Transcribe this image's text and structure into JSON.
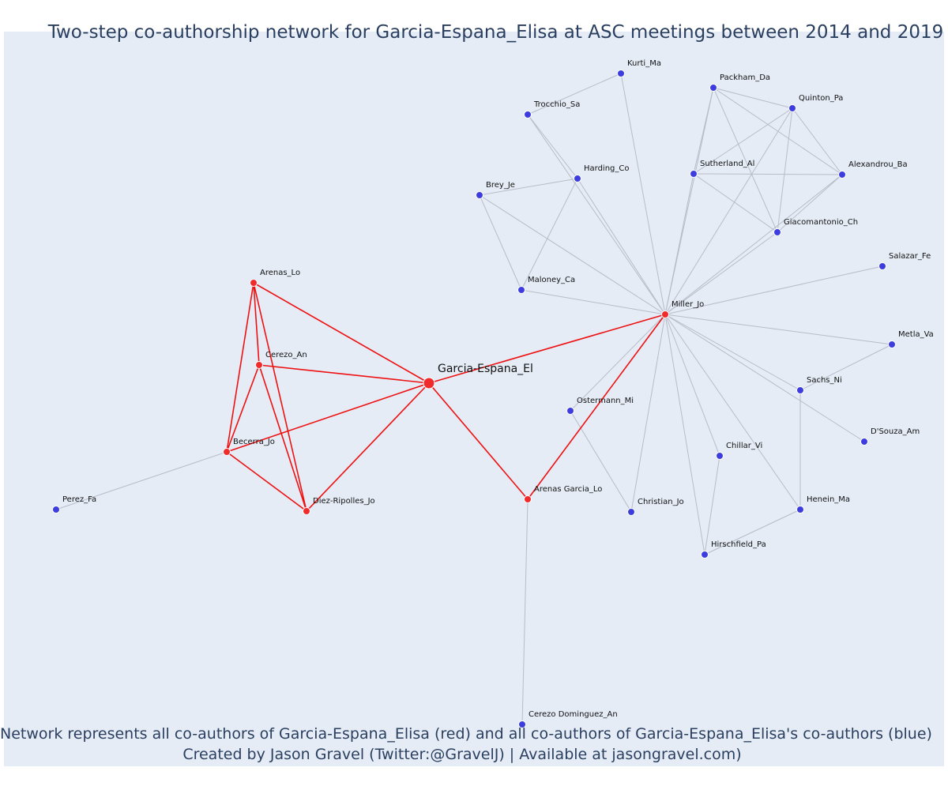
{
  "title": "Two-step co-authorship network for Garcia-Espana_Elisa at ASC meetings between 2014 and 2019",
  "caption_line1": "Network represents all co-authors of Garcia-Espana_Elisa (red) and all co-authors of Garcia-Espana_Elisa's co-authors (blue)",
  "caption_line2": "Created by Jason Gravel (Twitter:@GravelJ) | Available at jasongravel.com)",
  "colors": {
    "background": "#e5ecf6",
    "focal_node": "#ef2b2b",
    "coauthor_node": "#ef2b2b",
    "second_step_node": "#3d3ddf",
    "red_edge": "#ee1111",
    "grey_edge": "#b8bcc8",
    "text": "#2a3f5f"
  },
  "nodes": [
    {
      "id": "Garcia-Espana_El",
      "group": "focal"
    },
    {
      "id": "Arenas_Lo",
      "group": "coauthor"
    },
    {
      "id": "Cerezo_An",
      "group": "coauthor"
    },
    {
      "id": "Becerra_Jo",
      "group": "coauthor"
    },
    {
      "id": "Diez-Ripolles_Jo",
      "group": "coauthor"
    },
    {
      "id": "Arenas Garcia_Lo",
      "group": "coauthor"
    },
    {
      "id": "Miller_Jo",
      "group": "coauthor"
    },
    {
      "id": "Perez_Fa",
      "group": "second"
    },
    {
      "id": "Cerezo Dominguez_An",
      "group": "second"
    },
    {
      "id": "Kurti_Ma",
      "group": "second"
    },
    {
      "id": "Trocchio_Sa",
      "group": "second"
    },
    {
      "id": "Harding_Co",
      "group": "second"
    },
    {
      "id": "Brey_Je",
      "group": "second"
    },
    {
      "id": "Maloney_Ca",
      "group": "second"
    },
    {
      "id": "Packham_Da",
      "group": "second"
    },
    {
      "id": "Quinton_Pa",
      "group": "second"
    },
    {
      "id": "Sutherland_Al",
      "group": "second"
    },
    {
      "id": "Alexandrou_Ba",
      "group": "second"
    },
    {
      "id": "Giacomantonio_Ch",
      "group": "second"
    },
    {
      "id": "Salazar_Fe",
      "group": "second"
    },
    {
      "id": "Metla_Va",
      "group": "second"
    },
    {
      "id": "Sachs_Ni",
      "group": "second"
    },
    {
      "id": "D'Souza_Am",
      "group": "second"
    },
    {
      "id": "Ostermann_Mi",
      "group": "second"
    },
    {
      "id": "Chillar_Vi",
      "group": "second"
    },
    {
      "id": "Christian_Jo",
      "group": "second"
    },
    {
      "id": "Henein_Ma",
      "group": "second"
    },
    {
      "id": "Hirschfield_Pa",
      "group": "second"
    }
  ],
  "edges": [
    [
      "Garcia-Espana_El",
      "Arenas_Lo",
      "red"
    ],
    [
      "Garcia-Espana_El",
      "Cerezo_An",
      "red"
    ],
    [
      "Garcia-Espana_El",
      "Becerra_Jo",
      "red"
    ],
    [
      "Garcia-Espana_El",
      "Diez-Ripolles_Jo",
      "red"
    ],
    [
      "Garcia-Espana_El",
      "Arenas Garcia_Lo",
      "red"
    ],
    [
      "Garcia-Espana_El",
      "Miller_Jo",
      "red"
    ],
    [
      "Arenas_Lo",
      "Cerezo_An",
      "red"
    ],
    [
      "Arenas_Lo",
      "Becerra_Jo",
      "red"
    ],
    [
      "Arenas_Lo",
      "Diez-Ripolles_Jo",
      "red"
    ],
    [
      "Cerezo_An",
      "Becerra_Jo",
      "red"
    ],
    [
      "Cerezo_An",
      "Diez-Ripolles_Jo",
      "red"
    ],
    [
      "Becerra_Jo",
      "Diez-Ripolles_Jo",
      "red"
    ],
    [
      "Arenas Garcia_Lo",
      "Miller_Jo",
      "red"
    ],
    [
      "Becerra_Jo",
      "Perez_Fa",
      "grey"
    ],
    [
      "Arenas Garcia_Lo",
      "Cerezo Dominguez_An",
      "grey"
    ],
    [
      "Miller_Jo",
      "Kurti_Ma",
      "grey"
    ],
    [
      "Miller_Jo",
      "Trocchio_Sa",
      "grey"
    ],
    [
      "Miller_Jo",
      "Harding_Co",
      "grey"
    ],
    [
      "Miller_Jo",
      "Brey_Je",
      "grey"
    ],
    [
      "Miller_Jo",
      "Maloney_Ca",
      "grey"
    ],
    [
      "Miller_Jo",
      "Packham_Da",
      "grey"
    ],
    [
      "Miller_Jo",
      "Quinton_Pa",
      "grey"
    ],
    [
      "Miller_Jo",
      "Sutherland_Al",
      "grey"
    ],
    [
      "Miller_Jo",
      "Alexandrou_Ba",
      "grey"
    ],
    [
      "Miller_Jo",
      "Giacomantonio_Ch",
      "grey"
    ],
    [
      "Miller_Jo",
      "Salazar_Fe",
      "grey"
    ],
    [
      "Miller_Jo",
      "Metla_Va",
      "grey"
    ],
    [
      "Miller_Jo",
      "Sachs_Ni",
      "grey"
    ],
    [
      "Miller_Jo",
      "D'Souza_Am",
      "grey"
    ],
    [
      "Miller_Jo",
      "Ostermann_Mi",
      "grey"
    ],
    [
      "Miller_Jo",
      "Chillar_Vi",
      "grey"
    ],
    [
      "Miller_Jo",
      "Christian_Jo",
      "grey"
    ],
    [
      "Miller_Jo",
      "Henein_Ma",
      "grey"
    ],
    [
      "Miller_Jo",
      "Hirschfield_Pa",
      "grey"
    ],
    [
      "Kurti_Ma",
      "Trocchio_Sa",
      "grey"
    ],
    [
      "Trocchio_Sa",
      "Harding_Co",
      "grey"
    ],
    [
      "Harding_Co",
      "Brey_Je",
      "grey"
    ],
    [
      "Harding_Co",
      "Maloney_Ca",
      "grey"
    ],
    [
      "Brey_Je",
      "Maloney_Ca",
      "grey"
    ],
    [
      "Packham_Da",
      "Quinton_Pa",
      "grey"
    ],
    [
      "Packham_Da",
      "Sutherland_Al",
      "grey"
    ],
    [
      "Packham_Da",
      "Alexandrou_Ba",
      "grey"
    ],
    [
      "Packham_Da",
      "Giacomantonio_Ch",
      "grey"
    ],
    [
      "Quinton_Pa",
      "Sutherland_Al",
      "grey"
    ],
    [
      "Quinton_Pa",
      "Alexandrou_Ba",
      "grey"
    ],
    [
      "Quinton_Pa",
      "Giacomantonio_Ch",
      "grey"
    ],
    [
      "Sutherland_Al",
      "Alexandrou_Ba",
      "grey"
    ],
    [
      "Sutherland_Al",
      "Giacomantonio_Ch",
      "grey"
    ],
    [
      "Alexandrou_Ba",
      "Giacomantonio_Ch",
      "grey"
    ],
    [
      "Metla_Va",
      "Sachs_Ni",
      "grey"
    ],
    [
      "Sachs_Ni",
      "Henein_Ma",
      "grey"
    ],
    [
      "Ostermann_Mi",
      "Christian_Jo",
      "grey"
    ],
    [
      "Chillar_Vi",
      "Hirschfield_Pa",
      "grey"
    ],
    [
      "Henein_Ma",
      "Hirschfield_Pa",
      "grey"
    ]
  ]
}
